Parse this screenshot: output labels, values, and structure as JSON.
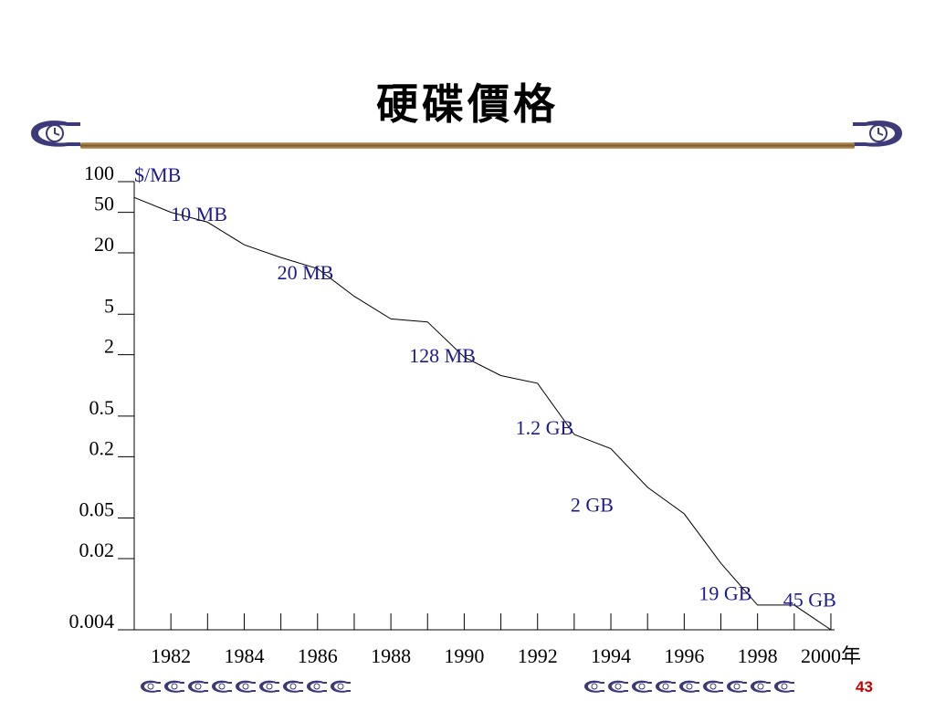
{
  "slide": {
    "title": "硬碟價格",
    "page_number": "43"
  },
  "colors": {
    "background": "#ffffff",
    "line": "#000000",
    "capacity_labels": "#1b1b8f",
    "rule": "#7a5a2e",
    "page_number": "#cc0000"
  },
  "chart_data": {
    "type": "line",
    "title": "",
    "ylabel": "$/MB",
    "xlabel": "年",
    "yscale": "log",
    "ylim": [
      0.004,
      100
    ],
    "xlim": [
      1981,
      2000.2
    ],
    "y_ticks": [
      100,
      50,
      20,
      5,
      2,
      0.5,
      0.2,
      0.05,
      0.02,
      0.004
    ],
    "y_tick_labels": [
      "100",
      "50",
      "20",
      "5",
      "2",
      "0.5",
      "0.2",
      "0.05",
      "0.02",
      "0.004"
    ],
    "x_ticks": [
      1982,
      1983,
      1984,
      1985,
      1986,
      1987,
      1988,
      1989,
      1990,
      1991,
      1992,
      1993,
      1994,
      1995,
      1996,
      1997,
      1998,
      1999,
      2000
    ],
    "x_tick_labels": [
      "1982",
      "1984",
      "1986",
      "1988",
      "1990",
      "1992",
      "1994",
      "1996",
      "1998",
      "2000年"
    ],
    "x_tick_label_years": [
      1982,
      1984,
      1986,
      1988,
      1990,
      1992,
      1994,
      1996,
      1998,
      2000
    ],
    "grid": false,
    "series": [
      {
        "x": [
          1981,
          1982,
          1983,
          1984,
          1985,
          1986,
          1987,
          1988,
          1989,
          1990,
          1991,
          1992,
          1993,
          1994,
          1995,
          1996,
          1997,
          1998,
          1999,
          2000
        ],
        "y": [
          70,
          50,
          40,
          24,
          18,
          14,
          7.5,
          4.5,
          4.2,
          1.9,
          1.25,
          1.05,
          0.33,
          0.24,
          0.1,
          0.055,
          0.018,
          0.007,
          0.007,
          0.004
        ]
      }
    ],
    "annotations": [
      {
        "text": "10 MB",
        "x": 1982,
        "y": 41
      },
      {
        "text": "20 MB",
        "x": 1984.9,
        "y": 11
      },
      {
        "text": "128 MB",
        "x": 1988.5,
        "y": 1.68
      },
      {
        "text": "1.2 GB",
        "x": 1991.4,
        "y": 0.33
      },
      {
        "text": "2 GB",
        "x": 1992.9,
        "y": 0.058
      },
      {
        "text": "19 GB",
        "x": 1996.4,
        "y": 0.0078
      },
      {
        "text": "45 GB",
        "x": 1998.7,
        "y": 0.0068
      }
    ]
  }
}
